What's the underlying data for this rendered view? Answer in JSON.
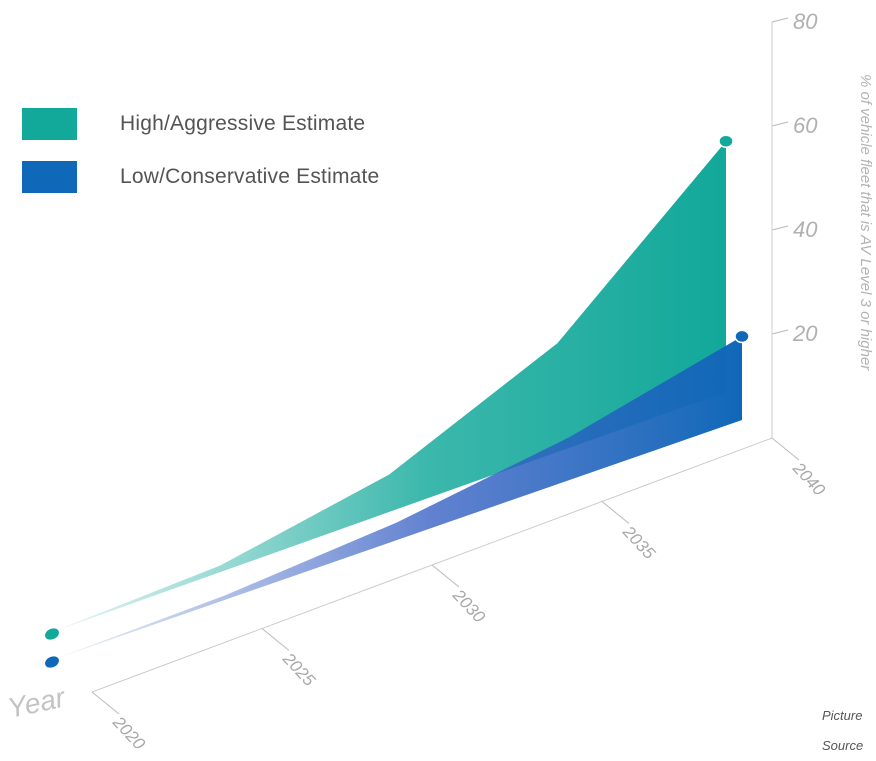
{
  "chart_data": {
    "type": "area",
    "title": "",
    "xlabel": "Year",
    "ylabel": "% of vehicle fleet that is AV Level 3 or higher",
    "x_ticks": [
      "2020",
      "2025",
      "2030",
      "2035",
      "2040"
    ],
    "y_ticks": [
      "20",
      "40",
      "60",
      "80"
    ],
    "xlim": [
      2020,
      2040
    ],
    "ylim": [
      0,
      80
    ],
    "series": [
      {
        "name": "High/Aggressive Estimate",
        "color": "#12a89a",
        "x": [
          2020,
          2025,
          2030,
          2035,
          2040
        ],
        "values": [
          0,
          6,
          17,
          33,
          57
        ]
      },
      {
        "name": "Low/Conservative Estimate",
        "color": "#1068b8",
        "x": [
          2020,
          2025,
          2030,
          2035,
          2040
        ],
        "values": [
          0,
          4,
          8,
          13,
          19
        ]
      }
    ],
    "legend_position": "top-left",
    "grid": false
  },
  "credits": {
    "picture": "Picture",
    "source": "Source"
  }
}
